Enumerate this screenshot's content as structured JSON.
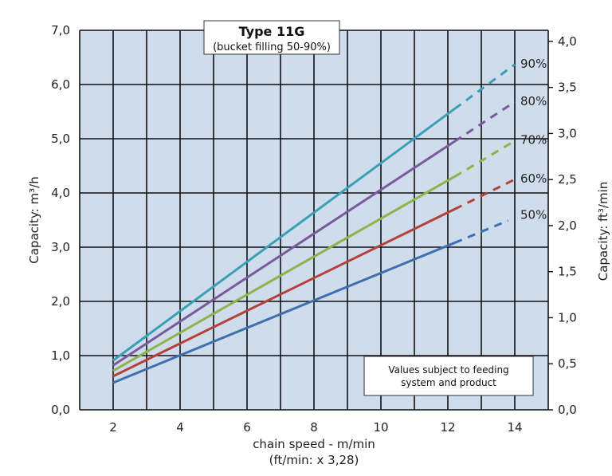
{
  "chart_data": {
    "type": "line",
    "title": "Type 11G",
    "subtitle": "(bucket filling 50-90%)",
    "xlabel": "chain speed - m/min",
    "xlabel_sub": "(ft/min: x 3,28)",
    "ylabel": "Capacity:  m³/h",
    "y2label": "Capacity:  ft³/min",
    "xlim": [
      1,
      15
    ],
    "ylim": [
      0,
      7
    ],
    "y2lim": [
      0,
      4.12
    ],
    "x_ticks": [
      "2",
      "4",
      "6",
      "8",
      "10",
      "12",
      "14"
    ],
    "y_ticks": [
      "0,0",
      "1,0",
      "2,0",
      "3,0",
      "4,0",
      "5,0",
      "6,0",
      "7,0"
    ],
    "y2_ticks": [
      "0,0",
      "0,5",
      "1,0",
      "1,5",
      "2,0",
      "2,5",
      "3,0",
      "3,5",
      "4,0"
    ],
    "grid": true,
    "background": "#cfdcec",
    "note": [
      "Values subject to feeding",
      "system and product"
    ],
    "series": [
      {
        "name": "50%",
        "color": "#3f6fae",
        "x": [
          2,
          12.2,
          13.8
        ],
        "y": [
          0.5,
          3.08,
          3.49
        ],
        "dashed_from": 12.2
      },
      {
        "name": "60%",
        "color": "#b5413b",
        "x": [
          2,
          12.2,
          14
        ],
        "y": [
          0.62,
          3.7,
          4.25
        ],
        "dashed_from": 12.2
      },
      {
        "name": "70%",
        "color": "#8db34a",
        "x": [
          2,
          12.2,
          14
        ],
        "y": [
          0.72,
          4.3,
          4.96
        ],
        "dashed_from": 12.2
      },
      {
        "name": "80%",
        "color": "#7a5a9c",
        "x": [
          2,
          12.2,
          14
        ],
        "y": [
          0.82,
          4.95,
          5.68
        ],
        "dashed_from": 12.2
      },
      {
        "name": "90%",
        "color": "#3aa0b5",
        "x": [
          2,
          12.2,
          14
        ],
        "y": [
          0.91,
          5.55,
          6.37
        ],
        "dashed_from": 12.2
      }
    ]
  }
}
